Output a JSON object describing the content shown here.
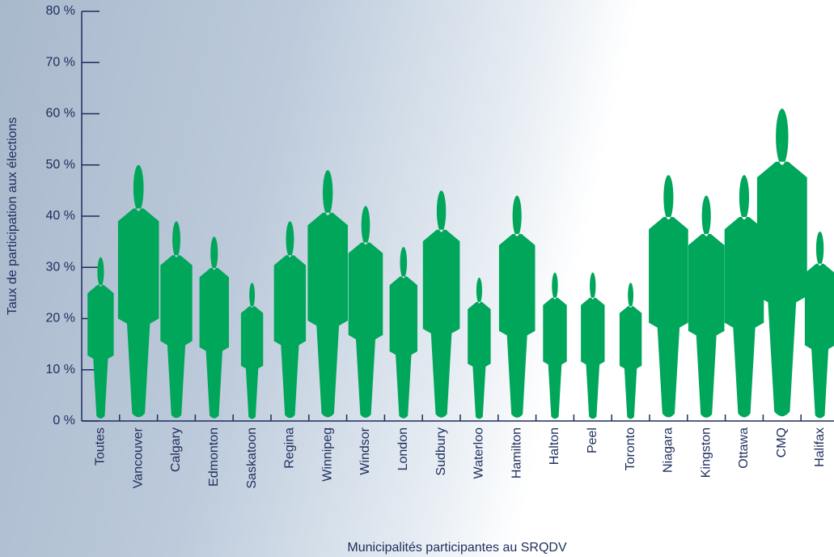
{
  "chart_data": {
    "type": "pictogram",
    "y_label": "Taux de participation aux élections",
    "x_label": "Municipalités participantes au SRQDV",
    "categories": [
      "Toutes",
      "Vancouver",
      "Calgary",
      "Edmonton",
      "Saskatoon",
      "Regina",
      "Winnipeg",
      "Windsor",
      "London",
      "Sudbury",
      "Waterloo",
      "Hamilton",
      "Halton",
      "Peel",
      "Toronto",
      "Niagara",
      "Kingston",
      "Ottawa",
      "CMQ",
      "Halifax"
    ],
    "values": [
      32,
      50,
      39,
      36,
      27,
      39,
      49,
      42,
      34,
      45,
      28,
      44,
      29,
      29,
      27,
      48,
      44,
      48,
      61,
      37
    ],
    "color": "#00a65a",
    "ylim": [
      0,
      80
    ],
    "yticks": [
      {
        "value": 0,
        "label": "0 %"
      },
      {
        "value": 10,
        "label": "10 %"
      },
      {
        "value": 20,
        "label": "20 %"
      },
      {
        "value": 30,
        "label": "30 %"
      },
      {
        "value": 40,
        "label": "40 %"
      },
      {
        "value": 50,
        "label": "50 %"
      },
      {
        "value": 60,
        "label": "60 %"
      },
      {
        "value": 70,
        "label": "70 %"
      },
      {
        "value": 80,
        "label": "80 %"
      }
    ]
  }
}
